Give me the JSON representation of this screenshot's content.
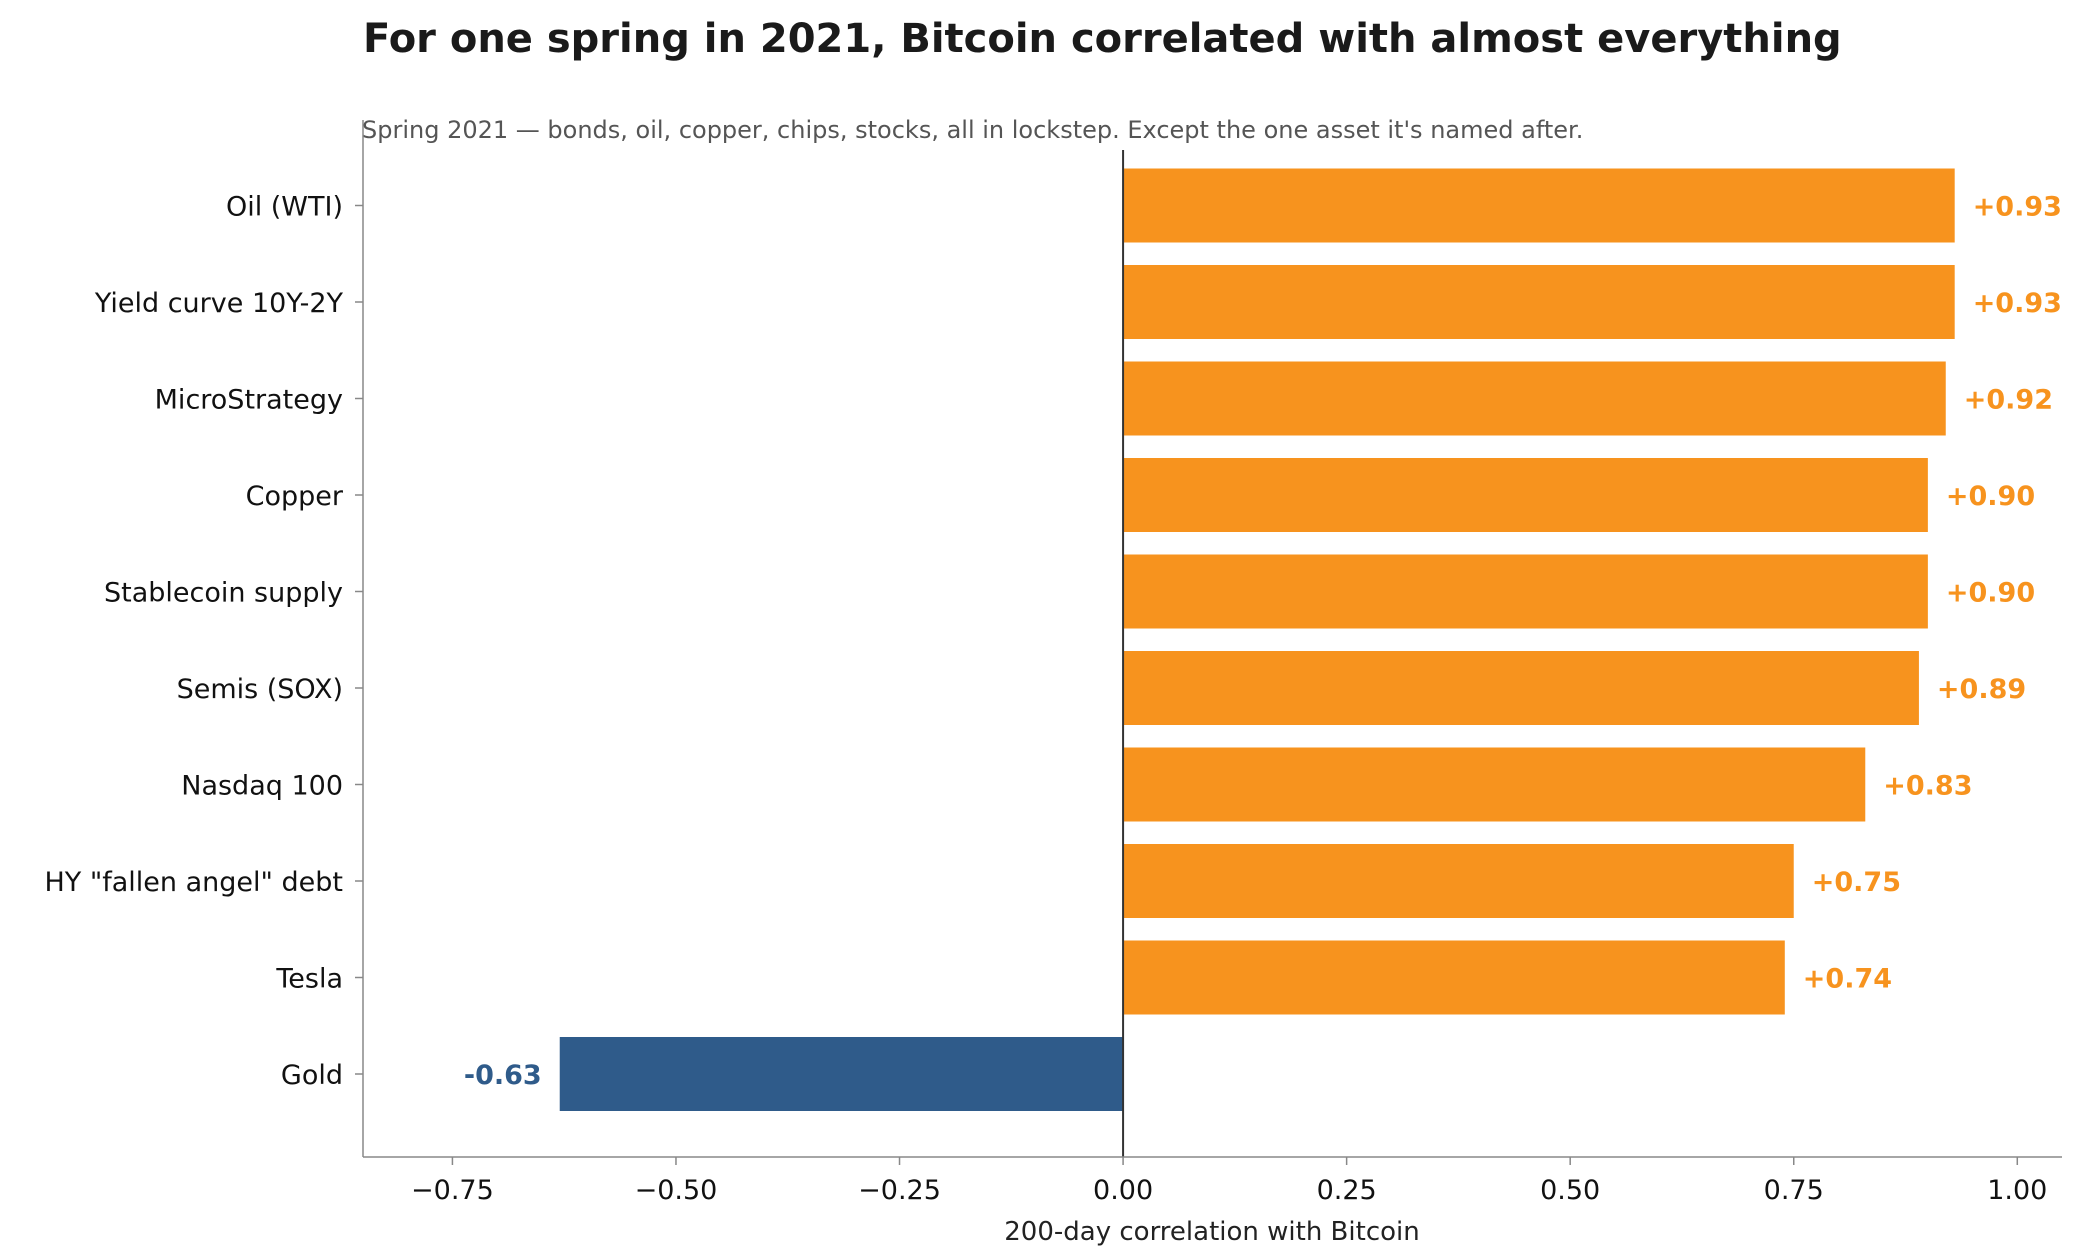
{
  "chart_data": {
    "type": "bar",
    "orientation": "horizontal",
    "title": "For one spring in 2021, Bitcoin correlated with almost everything",
    "subtitle": "Spring 2021 — bonds, oil, copper, chips, stocks, all in lockstep. Except the one asset it's named after.",
    "xlabel": "200-day correlation with Bitcoin",
    "ylabel": "",
    "xlim": [
      -0.85,
      1.05
    ],
    "xticks": [
      -0.75,
      -0.5,
      -0.25,
      0.0,
      0.25,
      0.5,
      0.75,
      1.0
    ],
    "xtick_labels": [
      "−0.75",
      "−0.50",
      "−0.25",
      "0.00",
      "0.25",
      "0.50",
      "0.75",
      "1.00"
    ],
    "grid": false,
    "categories": [
      "Oil (WTI)",
      "Yield curve 10Y-2Y",
      "MicroStrategy",
      "Copper",
      "Stablecoin supply",
      "Semis (SOX)",
      "Nasdaq 100",
      "HY \"fallen angel\" debt",
      "Tesla",
      "Gold"
    ],
    "values": [
      0.93,
      0.93,
      0.92,
      0.9,
      0.9,
      0.89,
      0.83,
      0.75,
      0.74,
      -0.63
    ],
    "value_labels": [
      "+0.93",
      "+0.93",
      "+0.92",
      "+0.90",
      "+0.90",
      "+0.89",
      "+0.83",
      "+0.75",
      "+0.74",
      "-0.63"
    ],
    "colors": {
      "positive": "#f7931e",
      "negative": "#2f5b8a",
      "zero_line": "#333333",
      "axis": "#888888"
    }
  }
}
